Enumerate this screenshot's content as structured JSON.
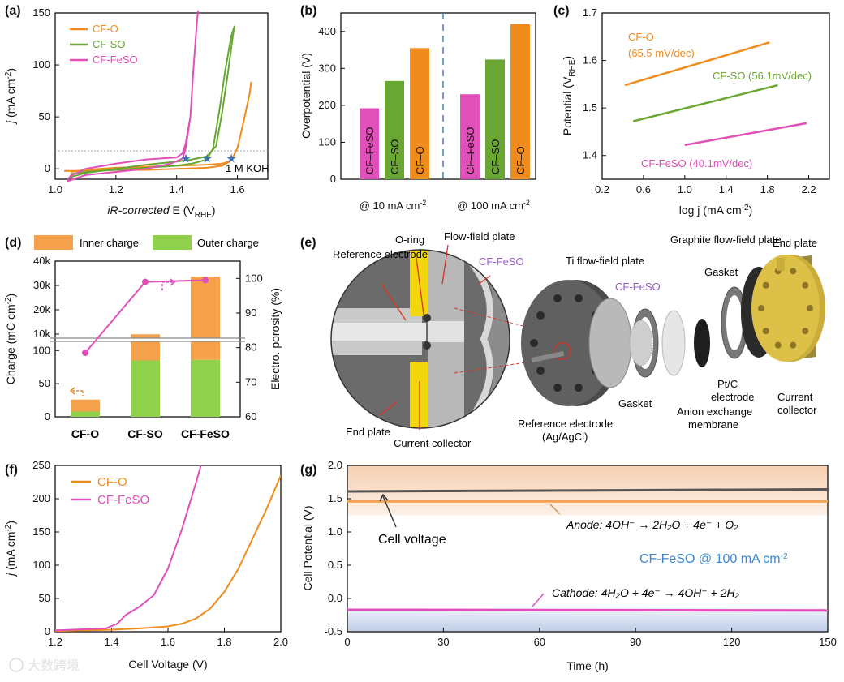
{
  "panels": {
    "a": {
      "tag": "(a)",
      "ylabel_j": "j",
      "ylabel_rest": " (mA cm",
      "ylabel_sup": "-2",
      "ylabel_end": ")",
      "xlabel_it": "iR-corrected",
      "xlabel_rest": " E (V",
      "xlabel_sub": "RHE",
      "xlabel_end": ")",
      "note": "1 M KOH"
    },
    "b": {
      "tag": "(b)",
      "ylabel": "Overpotential (V)",
      "group1": "@ 10 mA cm",
      "group2": "@ 100 mA cm",
      "sup": "-2"
    },
    "c": {
      "tag": "(c)",
      "ylabel": "Potential (V",
      "ylabel_sub": "RHE",
      "ylabel_end": ")",
      "xlabel": "log j (mA cm",
      "xlabel_sup": "-2",
      "xlabel_end": ")",
      "ann_o1": "CF-O",
      "ann_o2": "(65.5 mV/dec)",
      "ann_so": "CF-SO (56.1mV/dec)",
      "ann_feso": "CF-FeSO (40.1mV/dec)"
    },
    "d": {
      "tag": "(d)",
      "ylabel_left": "Charge (mC cm",
      "ylabel_left_sup": "-2",
      "ylabel_left_end": ")",
      "ylabel_right": "Electro. porosity (%)",
      "legend_inner": "Inner charge",
      "legend_outer": "Outer charge"
    },
    "e": {
      "tag": "(e)",
      "labels": {
        "reference_electrode": "Reference electrode",
        "o_ring": "O-ring",
        "flow_field": "Flow-field plate",
        "cf_feso": "CF-FeSO",
        "end_plate_left": "End plate",
        "current_collector_left": "Current collector",
        "ti_plate": "Ti flow-field plate",
        "cf_feso2": "CF-FeSO",
        "graphite": "Graphite flow-field plate",
        "gasket_top": "Gasket",
        "end_plate_right": "End plate",
        "ref_agcl_1": "Reference electrode",
        "ref_agcl_2": "(Ag/AgCl)",
        "gasket_bottom": "Gasket",
        "anion_1": "Anion exchange",
        "anion_2": "membrane",
        "ptc_1": "Pt/C",
        "ptc_2": "electrode",
        "cc_right_1": "Current",
        "cc_right_2": "collector"
      }
    },
    "f": {
      "tag": "(f)",
      "ylabel_j": "j",
      "ylabel_rest": " (mA cm",
      "ylabel_sup": "-2",
      "ylabel_end": ")",
      "xlabel": "Cell Voltage (V)"
    },
    "g": {
      "tag": "(g)",
      "ylabel": "Cell Potential (V)",
      "xlabel": "Time (h)",
      "cell_voltage": "Cell voltage",
      "anode": "Anode: 4OH⁻ → 2H₂O + 4e⁻ + O₂",
      "cathode": "Cathode: 4H₂O + 4e⁻ → 4OH⁻ + 2H₂",
      "condition": "CF-FeSO @ 100 mA cm",
      "condition_sup": "-2"
    }
  },
  "watermark": "大数跨境",
  "colors": {
    "CF-O": "#f08c1e",
    "CF-SO": "#6aa632",
    "CF-FeSO": "#e050b8",
    "star": "#3b6fb5",
    "cell": "#555555",
    "anode": "#f5a04a"
  },
  "chart_data": [
    {
      "panel": "a",
      "type": "line",
      "xlim": [
        1.0,
        1.7
      ],
      "ylim": [
        -10,
        150
      ],
      "xticks": [
        "1.0",
        "1.2",
        "1.4",
        "1.6"
      ],
      "yticks": [
        "0",
        "50",
        "100",
        "150"
      ],
      "series": [
        {
          "name": "CF-O",
          "x": [
            1.03,
            1.1,
            1.2,
            1.3,
            1.4,
            1.5,
            1.55,
            1.58,
            1.6,
            1.62,
            1.64,
            1.645,
            1.64,
            1.62,
            1.6,
            1.58,
            1.55,
            1.5,
            1.4,
            1.3,
            1.2,
            1.1,
            1.05
          ],
          "y": [
            -2,
            -2,
            -1,
            -1,
            0,
            1,
            3,
            8,
            20,
            45,
            72,
            83,
            72,
            45,
            20,
            8,
            5,
            4,
            3,
            2,
            1,
            -1,
            -3
          ]
        },
        {
          "name": "CF-SO",
          "x": [
            1.05,
            1.1,
            1.2,
            1.3,
            1.4,
            1.45,
            1.5,
            1.52,
            1.54,
            1.56,
            1.58,
            1.59,
            1.585,
            1.57,
            1.55,
            1.53,
            1.5,
            1.45,
            1.4,
            1.3,
            1.2,
            1.1,
            1.05
          ],
          "y": [
            -5,
            -3,
            -1,
            1,
            3,
            5,
            9,
            20,
            55,
            95,
            128,
            137,
            128,
            95,
            55,
            22,
            12,
            9,
            7,
            4,
            0,
            -4,
            -8
          ]
        },
        {
          "name": "CF-FeSO",
          "x": [
            1.04,
            1.1,
            1.2,
            1.3,
            1.38,
            1.42,
            1.43,
            1.445,
            1.455,
            1.465,
            1.47,
            1.465,
            1.455,
            1.445,
            1.43,
            1.42,
            1.4,
            1.3,
            1.2,
            1.1,
            1.05,
            1.04
          ],
          "y": [
            -12,
            -6,
            -3,
            0,
            5,
            10,
            20,
            50,
            95,
            135,
            152,
            135,
            95,
            50,
            25,
            15,
            11,
            9,
            5,
            0,
            -7,
            -12
          ]
        }
      ],
      "markers_x": [
        1.43,
        1.5,
        1.58
      ],
      "marker_y": 10,
      "reference_line_y": 10
    },
    {
      "panel": "b",
      "type": "bar",
      "ylim": [
        0,
        450
      ],
      "yticks": [
        "0",
        "100",
        "200",
        "300",
        "400"
      ],
      "groups": [
        "@ 10 mA cm-2",
        "@ 100 mA cm-2"
      ],
      "series": [
        {
          "name": "CF-FeSO",
          "values": [
            192,
            230
          ]
        },
        {
          "name": "CF-SO",
          "values": [
            266,
            324
          ]
        },
        {
          "name": "CF-O",
          "values": [
            355,
            420
          ]
        }
      ]
    },
    {
      "panel": "c",
      "type": "line",
      "xlim": [
        0.2,
        2.4
      ],
      "ylim": [
        1.35,
        1.7
      ],
      "xticks": [
        "0.2",
        "0.6",
        "1.0",
        "1.4",
        "1.8",
        "2.2"
      ],
      "yticks": [
        "1.4",
        "1.5",
        "1.6",
        "1.7"
      ],
      "series": [
        {
          "name": "CF-O",
          "x": [
            0.42,
            1.82
          ],
          "y": [
            1.548,
            1.638
          ]
        },
        {
          "name": "CF-SO",
          "x": [
            0.5,
            1.9
          ],
          "y": [
            1.472,
            1.548
          ]
        },
        {
          "name": "CF-FeSO",
          "x": [
            1.0,
            2.18
          ],
          "y": [
            1.422,
            1.468
          ]
        }
      ]
    },
    {
      "panel": "d",
      "type": "bar",
      "categories": [
        "CF-O",
        "CF-SO",
        "CF-FeSO"
      ],
      "ylim_low": [
        0,
        115
      ],
      "ylim_high": [
        8000,
        40000
      ],
      "yticks_left": [
        "0",
        "50",
        "100",
        "10k",
        "20k",
        "30k",
        "40k"
      ],
      "yticks_right": [
        "60",
        "70",
        "80",
        "90",
        "100"
      ],
      "series": [
        {
          "name": "Inner charge",
          "values": [
            18,
            9900,
            33600
          ]
        },
        {
          "name": "Outer charge",
          "values": [
            8,
            85,
            86
          ]
        },
        {
          "name": "Electro. porosity",
          "values": [
            78.5,
            99,
            99.5
          ]
        }
      ]
    },
    {
      "panel": "f",
      "type": "line",
      "xlim": [
        1.2,
        2.0
      ],
      "ylim": [
        0,
        250
      ],
      "xticks": [
        "1.2",
        "1.4",
        "1.6",
        "1.8",
        "2.0"
      ],
      "yticks": [
        "0",
        "50",
        "100",
        "150",
        "200",
        "250"
      ],
      "series": [
        {
          "name": "CF-O",
          "x": [
            1.2,
            1.4,
            1.5,
            1.6,
            1.65,
            1.7,
            1.75,
            1.8,
            1.85,
            1.9,
            1.95,
            2.0
          ],
          "y": [
            1,
            3,
            5,
            8,
            12,
            20,
            35,
            60,
            95,
            140,
            185,
            235
          ]
        },
        {
          "name": "CF-FeSO",
          "x": [
            1.2,
            1.38,
            1.42,
            1.45,
            1.5,
            1.55,
            1.6,
            1.65,
            1.7,
            1.72
          ],
          "y": [
            2,
            5,
            12,
            25,
            38,
            55,
            95,
            155,
            225,
            255
          ]
        }
      ]
    },
    {
      "panel": "g",
      "type": "line",
      "xlim": [
        0,
        150
      ],
      "ylim": [
        -0.5,
        2.0
      ],
      "xticks": [
        "0",
        "30",
        "60",
        "90",
        "120",
        "150"
      ],
      "yticks": [
        "-0.5",
        "0.0",
        "0.5",
        "1.0",
        "1.5",
        "2.0"
      ],
      "series": [
        {
          "name": "Cell voltage",
          "x": [
            0,
            150
          ],
          "y": [
            1.61,
            1.64
          ]
        },
        {
          "name": "Anode",
          "x": [
            0,
            150
          ],
          "y": [
            1.46,
            1.46
          ]
        },
        {
          "name": "Cathode",
          "x": [
            0,
            150
          ],
          "y": [
            -0.17,
            -0.18
          ]
        }
      ]
    }
  ]
}
